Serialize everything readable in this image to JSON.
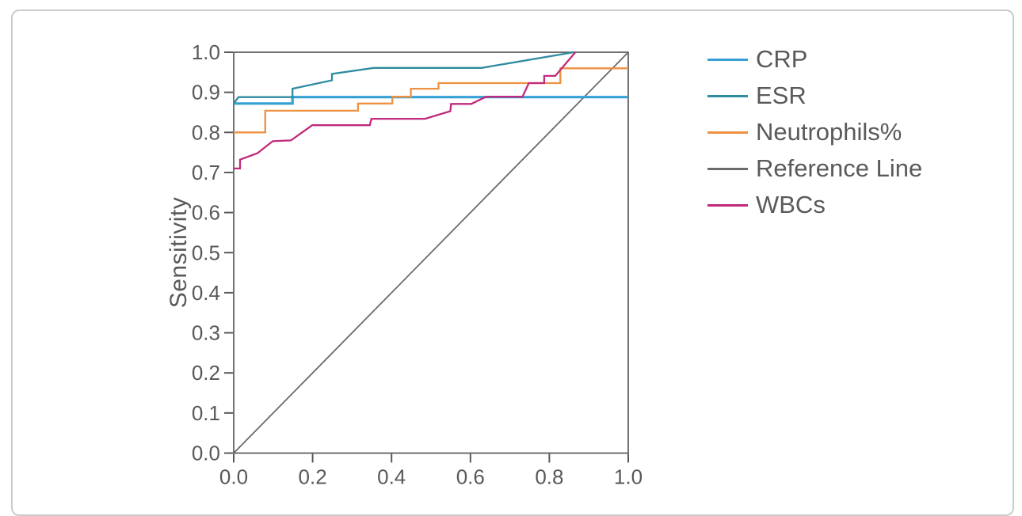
{
  "chart_data": {
    "type": "line",
    "subtype": "roc-curves",
    "title": "",
    "xlabel": "",
    "ylabel": "Sensitivity",
    "xlim": [
      0.0,
      1.0
    ],
    "ylim": [
      0.0,
      1.0
    ],
    "grid": false,
    "legend_position": "right-outside",
    "x_ticks": [
      {
        "value": 0.0,
        "label": "0.0"
      },
      {
        "value": 0.2,
        "label": "0.2"
      },
      {
        "value": 0.4,
        "label": "0.4"
      },
      {
        "value": 0.6,
        "label": "0.6"
      },
      {
        "value": 0.8,
        "label": "0.8"
      },
      {
        "value": 1.0,
        "label": "1.0"
      }
    ],
    "y_ticks": [
      {
        "value": 0.0,
        "label": "0.0"
      },
      {
        "value": 0.1,
        "label": "0.1"
      },
      {
        "value": 0.2,
        "label": "0.2"
      },
      {
        "value": 0.3,
        "label": "0.3"
      },
      {
        "value": 0.4,
        "label": "0.4"
      },
      {
        "value": 0.5,
        "label": "0.5"
      },
      {
        "value": 0.6,
        "label": "0.6"
      },
      {
        "value": 0.7,
        "label": "0.7"
      },
      {
        "value": 0.8,
        "label": "0.8"
      },
      {
        "value": 0.9,
        "label": "0.9"
      },
      {
        "value": 1.0,
        "label": "1.0"
      }
    ],
    "series": [
      {
        "name": "CRP",
        "color": "#36A0D4",
        "line_width": 3.2,
        "points": [
          [
            0,
            0.872
          ],
          [
            0.149,
            0.872
          ],
          [
            0.149,
            0.888
          ],
          [
            1.0,
            0.888
          ]
        ]
      },
      {
        "name": "ESR",
        "color": "#2E8C9F",
        "line_width": 2.3,
        "points": [
          [
            0,
            0.872
          ],
          [
            0.012,
            0.888
          ],
          [
            0.149,
            0.888
          ],
          [
            0.149,
            0.909
          ],
          [
            0.249,
            0.93
          ],
          [
            0.249,
            0.946
          ],
          [
            0.355,
            0.961
          ],
          [
            0.628,
            0.961
          ],
          [
            0.862,
            1.0
          ]
        ]
      },
      {
        "name": "Neutrophils%",
        "color": "#EE9142",
        "line_width": 2.3,
        "points": [
          [
            0,
            0.8
          ],
          [
            0.08,
            0.8
          ],
          [
            0.08,
            0.854
          ],
          [
            0.315,
            0.854
          ],
          [
            0.315,
            0.872
          ],
          [
            0.402,
            0.872
          ],
          [
            0.402,
            0.889
          ],
          [
            0.449,
            0.889
          ],
          [
            0.449,
            0.909
          ],
          [
            0.519,
            0.909
          ],
          [
            0.519,
            0.923
          ],
          [
            0.828,
            0.923
          ],
          [
            0.828,
            0.96
          ],
          [
            1.0,
            0.96
          ]
        ]
      },
      {
        "name": "Reference Line",
        "color": "#6B6B6B",
        "line_width": 1.8,
        "points": [
          [
            0,
            0
          ],
          [
            1.0,
            1.0
          ]
        ]
      },
      {
        "name": "WBCs",
        "color": "#C12A7C",
        "line_width": 2.3,
        "points": [
          [
            0,
            0.71
          ],
          [
            0.016,
            0.71
          ],
          [
            0.016,
            0.732
          ],
          [
            0.06,
            0.748
          ],
          [
            0.099,
            0.778
          ],
          [
            0.145,
            0.78
          ],
          [
            0.199,
            0.818
          ],
          [
            0.345,
            0.818
          ],
          [
            0.349,
            0.834
          ],
          [
            0.485,
            0.834
          ],
          [
            0.549,
            0.853
          ],
          [
            0.551,
            0.871
          ],
          [
            0.602,
            0.871
          ],
          [
            0.64,
            0.889
          ],
          [
            0.732,
            0.889
          ],
          [
            0.748,
            0.923
          ],
          [
            0.787,
            0.923
          ],
          [
            0.787,
            0.941
          ],
          [
            0.815,
            0.941
          ],
          [
            0.866,
            1.0
          ]
        ]
      }
    ]
  }
}
